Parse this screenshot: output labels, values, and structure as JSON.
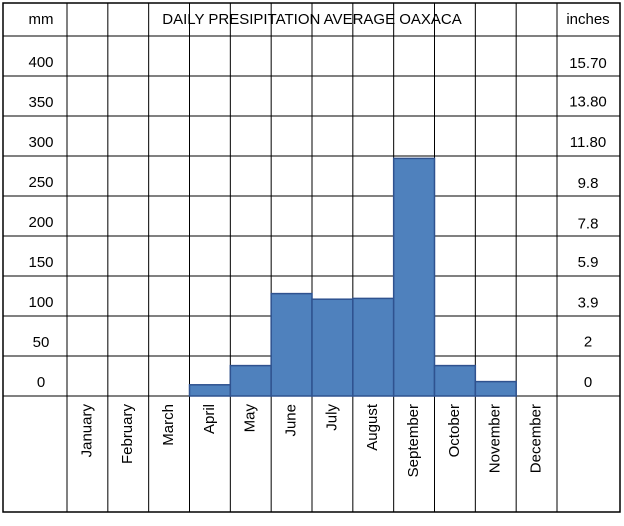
{
  "chart_data": {
    "type": "bar",
    "title": "DAILY PRESIPITATION AVERAGE OAXACA",
    "y_label": "mm",
    "y2_label": "inches",
    "categories": [
      "January",
      "February",
      "March",
      "April",
      "May",
      "June",
      "July",
      "August",
      "September",
      "October",
      "November",
      "December"
    ],
    "values": [
      0,
      0,
      0,
      14,
      38,
      128,
      121,
      122,
      297,
      38,
      18,
      0
    ],
    "color": "#4f81bd",
    "ylim": [
      0,
      450
    ],
    "yticks": [
      0,
      50,
      100,
      150,
      200,
      250,
      300,
      350,
      400
    ],
    "y2lim": [
      0,
      17.72
    ],
    "y2ticks": [
      0,
      2,
      3.9,
      5.9,
      7.8,
      9.8,
      {
        "value": 11.8,
        "label": "11.80"
      },
      {
        "value": 13.8,
        "label": "13.80"
      },
      {
        "value": 15.7,
        "label": "15.70"
      }
    ],
    "grid": true
  }
}
